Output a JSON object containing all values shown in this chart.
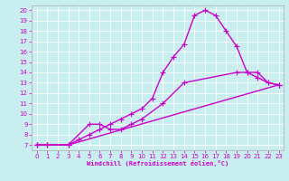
{
  "title": "",
  "xlabel": "Windchill (Refroidissement éolien,°C)",
  "bg_color": "#c8eef0",
  "grid_color": "#ffffff",
  "line_color": "#cc00cc",
  "xlim": [
    -0.5,
    23.5
  ],
  "ylim": [
    6.5,
    20.5
  ],
  "xticks": [
    0,
    1,
    2,
    3,
    4,
    5,
    6,
    7,
    8,
    9,
    10,
    11,
    12,
    13,
    14,
    15,
    16,
    17,
    18,
    19,
    20,
    21,
    22,
    23
  ],
  "yticks": [
    7,
    8,
    9,
    10,
    11,
    12,
    13,
    14,
    15,
    16,
    17,
    18,
    19,
    20
  ],
  "curve1_x": [
    0,
    1,
    3,
    4,
    5,
    6,
    7,
    8,
    9,
    10,
    11,
    12,
    13,
    14,
    15,
    16,
    17,
    18,
    19,
    20,
    21,
    22,
    23
  ],
  "curve1_y": [
    7,
    7,
    7,
    7.5,
    8,
    8.5,
    9,
    9.5,
    10,
    10.5,
    11.5,
    14,
    15.5,
    16.7,
    19.5,
    20,
    19.5,
    18,
    16.5,
    14,
    14,
    13,
    12.8
  ],
  "curve2_x": [
    0,
    1,
    3,
    5,
    6,
    7,
    8,
    9,
    10,
    12,
    14,
    19,
    20,
    21,
    22,
    23
  ],
  "curve2_y": [
    7,
    7,
    7,
    9,
    9,
    8.5,
    8.5,
    9,
    9.5,
    11,
    13,
    14,
    14,
    13.5,
    13,
    12.8
  ],
  "curve3_x": [
    0,
    1,
    3,
    23
  ],
  "curve3_y": [
    7,
    7,
    7,
    12.8
  ],
  "marker": "+",
  "markersize": 4,
  "linewidth": 1.0
}
